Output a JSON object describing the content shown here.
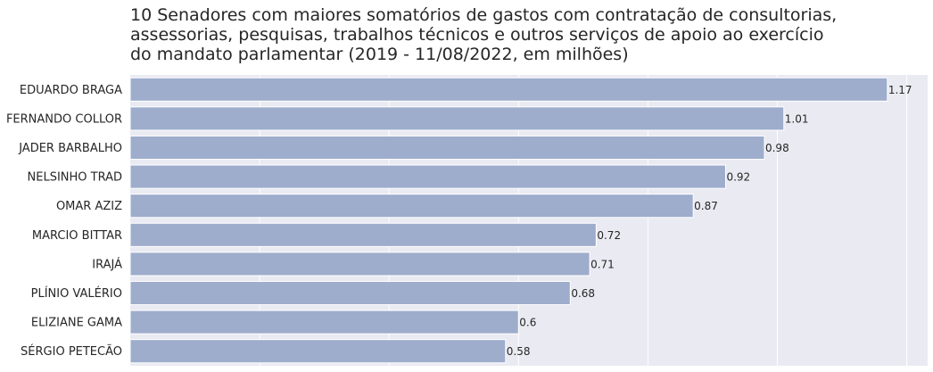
{
  "chart_data": {
    "type": "bar",
    "orientation": "horizontal",
    "title": "10 Senadores com maiores somatórios de gastos com contratação de consultorias,\nassessorias, pesquisas, trabalhos técnicos e outros serviços de apoio ao exercício\ndo mandato parlamentar (2019 - 11/08/2022, em milhões)",
    "xlabel": "",
    "ylabel": "",
    "categories": [
      "EDUARDO BRAGA",
      "FERNANDO COLLOR",
      "JADER BARBALHO",
      "NELSINHO TRAD",
      "OMAR AZIZ",
      "MARCIO BITTAR",
      "IRAJÁ",
      "PLÍNIO VALÉRIO",
      "ELIZIANE GAMA",
      "SÉRGIO PETECÃO"
    ],
    "values": [
      1.17,
      1.01,
      0.98,
      0.92,
      0.87,
      0.72,
      0.71,
      0.68,
      0.6,
      0.58
    ],
    "data_labels": [
      "1.17",
      "1.01",
      "0.98",
      "0.92",
      "0.87",
      "0.72",
      "0.71",
      "0.68",
      "0.6",
      "0.58"
    ],
    "xlim": [
      0,
      1.2
    ],
    "grid": true,
    "bar_color": "#9eadcc",
    "background_color": "#eaeaf2"
  }
}
